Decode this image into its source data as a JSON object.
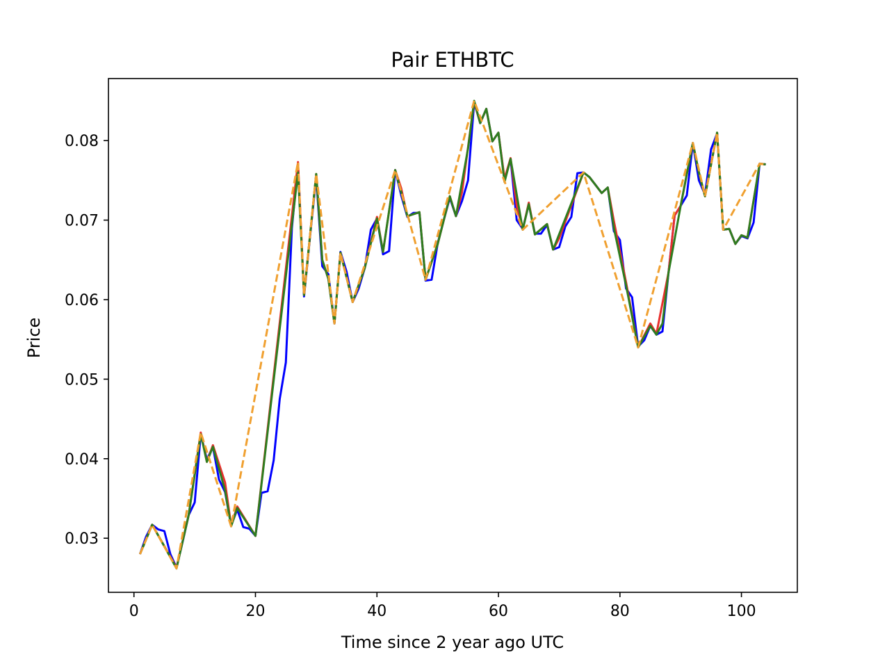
{
  "chart_data": {
    "type": "line",
    "title": "Pair ETHBTC",
    "xlabel": "Time since 2 year ago UTC",
    "ylabel": "Price",
    "xlim": [
      -4.2,
      109.2
    ],
    "ylim": [
      0.0232,
      0.0878
    ],
    "xticks": [
      0,
      20,
      40,
      60,
      80,
      100
    ],
    "yticks": [
      0.03,
      0.04,
      0.05,
      0.06,
      0.07,
      0.08
    ],
    "xtick_labels": [
      "0",
      "20",
      "40",
      "60",
      "80",
      "100"
    ],
    "ytick_labels": [
      "0.03",
      "0.04",
      "0.05",
      "0.06",
      "0.07",
      "0.08"
    ],
    "grid": false,
    "legend": "none",
    "series": [
      {
        "color": "#0000ff",
        "style": "solid",
        "points": [
          [
            1,
            0.028
          ],
          [
            2,
            0.0302
          ],
          [
            3,
            0.0317
          ],
          [
            4,
            0.0311
          ],
          [
            5,
            0.0309
          ],
          [
            6,
            0.028
          ],
          [
            7,
            0.0263
          ],
          [
            8,
            0.0295
          ],
          [
            9,
            0.0329
          ],
          [
            10,
            0.0345
          ],
          [
            11,
            0.0431
          ],
          [
            12,
            0.0399
          ],
          [
            13,
            0.0415
          ],
          [
            14,
            0.0374
          ],
          [
            15,
            0.0358
          ],
          [
            16,
            0.0316
          ],
          [
            17,
            0.0336
          ],
          [
            18,
            0.0314
          ],
          [
            19,
            0.0312
          ],
          [
            20,
            0.0303
          ],
          [
            21,
            0.0357
          ],
          [
            22,
            0.0359
          ],
          [
            23,
            0.0398
          ],
          [
            24,
            0.0475
          ],
          [
            25,
            0.0521
          ],
          [
            26,
            0.069
          ],
          [
            27,
            0.077
          ],
          [
            28,
            0.0604
          ],
          [
            29,
            0.068
          ],
          [
            30,
            0.0754
          ],
          [
            31,
            0.0642
          ],
          [
            32,
            0.0632
          ],
          [
            33,
            0.057
          ],
          [
            34,
            0.066
          ],
          [
            35,
            0.0635
          ],
          [
            36,
            0.0597
          ],
          [
            37,
            0.0614
          ],
          [
            38,
            0.064
          ],
          [
            39,
            0.0688
          ],
          [
            40,
            0.0702
          ],
          [
            41,
            0.0657
          ],
          [
            42,
            0.0661
          ],
          [
            43,
            0.0763
          ],
          [
            44,
            0.0731
          ],
          [
            45,
            0.0704
          ],
          [
            46,
            0.0709
          ],
          [
            47,
            0.0709
          ],
          [
            48,
            0.0624
          ],
          [
            49,
            0.0625
          ],
          [
            50,
            0.0671
          ],
          [
            51,
            0.07
          ],
          [
            52,
            0.0728
          ],
          [
            53,
            0.0705
          ],
          [
            54,
            0.0724
          ],
          [
            55,
            0.075
          ],
          [
            56,
            0.0848
          ],
          [
            57,
            0.0822
          ],
          [
            58,
            0.084
          ],
          [
            59,
            0.0799
          ],
          [
            60,
            0.081
          ],
          [
            61,
            0.075
          ],
          [
            62,
            0.0777
          ],
          [
            63,
            0.07
          ],
          [
            64,
            0.0689
          ],
          [
            65,
            0.072
          ],
          [
            66,
            0.0683
          ],
          [
            67,
            0.0683
          ],
          [
            68,
            0.0694
          ],
          [
            69,
            0.0663
          ],
          [
            70,
            0.0666
          ],
          [
            71,
            0.0692
          ],
          [
            72,
            0.0704
          ],
          [
            73,
            0.0759
          ],
          [
            74,
            0.076
          ],
          [
            75,
            0.0754
          ],
          [
            76,
            0.0744
          ],
          [
            77,
            0.0734
          ],
          [
            78,
            0.0741
          ],
          [
            79,
            0.0686
          ],
          [
            80,
            0.0675
          ],
          [
            81,
            0.0614
          ],
          [
            82,
            0.0603
          ],
          [
            83,
            0.0541
          ],
          [
            84,
            0.0549
          ],
          [
            85,
            0.0567
          ],
          [
            86,
            0.0556
          ],
          [
            87,
            0.056
          ],
          [
            88,
            0.0634
          ],
          [
            89,
            0.0706
          ],
          [
            90,
            0.0718
          ],
          [
            91,
            0.0731
          ],
          [
            92,
            0.0797
          ],
          [
            93,
            0.075
          ],
          [
            94,
            0.0732
          ],
          [
            95,
            0.0789
          ],
          [
            96,
            0.0809
          ],
          [
            97,
            0.0688
          ],
          [
            98,
            0.0689
          ],
          [
            99,
            0.067
          ],
          [
            100,
            0.068
          ],
          [
            101,
            0.0677
          ],
          [
            102,
            0.0697
          ],
          [
            103,
            0.0771
          ],
          [
            104,
            0.077
          ]
        ]
      },
      {
        "color": "#e8302e",
        "style": "solid",
        "points": [
          [
            1,
            0.028
          ],
          [
            3,
            0.0317
          ],
          [
            5,
            0.029
          ],
          [
            7,
            0.0263
          ],
          [
            9,
            0.0329
          ],
          [
            11,
            0.0433
          ],
          [
            12,
            0.0396
          ],
          [
            13,
            0.0417
          ],
          [
            15,
            0.037
          ],
          [
            16,
            0.0316
          ],
          [
            17,
            0.034
          ],
          [
            20,
            0.0303
          ],
          [
            27,
            0.0773
          ],
          [
            28,
            0.0606
          ],
          [
            30,
            0.0758
          ],
          [
            31,
            0.065
          ],
          [
            32,
            0.0626
          ],
          [
            33,
            0.057
          ],
          [
            34,
            0.0659
          ],
          [
            36,
            0.0597
          ],
          [
            38,
            0.064
          ],
          [
            40,
            0.0704
          ],
          [
            41,
            0.066
          ],
          [
            43,
            0.0763
          ],
          [
            44,
            0.074
          ],
          [
            45,
            0.0705
          ],
          [
            47,
            0.071
          ],
          [
            48,
            0.0625
          ],
          [
            50,
            0.067
          ],
          [
            52,
            0.073
          ],
          [
            53,
            0.0705
          ],
          [
            54,
            0.0735
          ],
          [
            56,
            0.0849
          ],
          [
            57,
            0.0822
          ],
          [
            58,
            0.084
          ],
          [
            59,
            0.0799
          ],
          [
            60,
            0.081
          ],
          [
            61,
            0.0752
          ],
          [
            62,
            0.0778
          ],
          [
            63,
            0.0718
          ],
          [
            64,
            0.0688
          ],
          [
            65,
            0.0722
          ],
          [
            66,
            0.0682
          ],
          [
            68,
            0.0695
          ],
          [
            69,
            0.0663
          ],
          [
            70,
            0.0677
          ],
          [
            74,
            0.076
          ],
          [
            75,
            0.0754
          ],
          [
            77,
            0.0734
          ],
          [
            78,
            0.0741
          ],
          [
            79,
            0.0699
          ],
          [
            81,
            0.0622
          ],
          [
            83,
            0.054
          ],
          [
            85,
            0.057
          ],
          [
            86,
            0.0557
          ],
          [
            88,
            0.0634
          ],
          [
            89,
            0.0706
          ],
          [
            90,
            0.0718
          ],
          [
            92,
            0.0797
          ],
          [
            93,
            0.076
          ],
          [
            94,
            0.073
          ],
          [
            96,
            0.081
          ],
          [
            97,
            0.0688
          ],
          [
            98,
            0.0689
          ],
          [
            99,
            0.067
          ],
          [
            100,
            0.0681
          ],
          [
            101,
            0.0678
          ],
          [
            103,
            0.0771
          ],
          [
            104,
            0.077
          ]
        ]
      },
      {
        "color": "#2e7d1f",
        "style": "solid",
        "points": [
          [
            1,
            0.028
          ],
          [
            3,
            0.0317
          ],
          [
            5,
            0.029
          ],
          [
            7,
            0.0262
          ],
          [
            9,
            0.0329
          ],
          [
            11,
            0.0431
          ],
          [
            12,
            0.0396
          ],
          [
            13,
            0.0415
          ],
          [
            15,
            0.036
          ],
          [
            16,
            0.0315
          ],
          [
            17,
            0.0338
          ],
          [
            20,
            0.0303
          ],
          [
            27,
            0.076
          ],
          [
            28,
            0.0606
          ],
          [
            30,
            0.0758
          ],
          [
            31,
            0.065
          ],
          [
            32,
            0.0626
          ],
          [
            33,
            0.057
          ],
          [
            34,
            0.0659
          ],
          [
            36,
            0.0597
          ],
          [
            38,
            0.064
          ],
          [
            40,
            0.0702
          ],
          [
            41,
            0.066
          ],
          [
            43,
            0.0763
          ],
          [
            44,
            0.0735
          ],
          [
            45,
            0.0705
          ],
          [
            47,
            0.071
          ],
          [
            48,
            0.0625
          ],
          [
            50,
            0.067
          ],
          [
            52,
            0.073
          ],
          [
            53,
            0.0705
          ],
          [
            55,
            0.079
          ],
          [
            56,
            0.085
          ],
          [
            57,
            0.0822
          ],
          [
            58,
            0.084
          ],
          [
            59,
            0.0799
          ],
          [
            60,
            0.081
          ],
          [
            61,
            0.0748
          ],
          [
            62,
            0.0777
          ],
          [
            64,
            0.0688
          ],
          [
            65,
            0.072
          ],
          [
            66,
            0.0682
          ],
          [
            68,
            0.0695
          ],
          [
            69,
            0.0663
          ],
          [
            74,
            0.076
          ],
          [
            75,
            0.0754
          ],
          [
            77,
            0.0734
          ],
          [
            78,
            0.0741
          ],
          [
            79,
            0.069
          ],
          [
            81,
            0.0618
          ],
          [
            83,
            0.054
          ],
          [
            85,
            0.0567
          ],
          [
            86,
            0.0556
          ],
          [
            87,
            0.057
          ],
          [
            88,
            0.0634
          ],
          [
            90,
            0.0718
          ],
          [
            92,
            0.0797
          ],
          [
            93,
            0.076
          ],
          [
            94,
            0.073
          ],
          [
            96,
            0.081
          ],
          [
            97,
            0.0688
          ],
          [
            98,
            0.0689
          ],
          [
            99,
            0.067
          ],
          [
            100,
            0.0681
          ],
          [
            101,
            0.0678
          ],
          [
            103,
            0.0771
          ],
          [
            104,
            0.077
          ]
        ]
      },
      {
        "color": "#f0a030",
        "style": "dashed",
        "points": [
          [
            1,
            0.028
          ],
          [
            3,
            0.0317
          ],
          [
            7,
            0.0262
          ],
          [
            11,
            0.0433
          ],
          [
            16,
            0.0315
          ],
          [
            27,
            0.0773
          ],
          [
            28,
            0.0606
          ],
          [
            30,
            0.0758
          ],
          [
            33,
            0.057
          ],
          [
            34,
            0.0659
          ],
          [
            36,
            0.0597
          ],
          [
            43,
            0.0763
          ],
          [
            48,
            0.0625
          ],
          [
            56,
            0.085
          ],
          [
            64,
            0.0688
          ],
          [
            74,
            0.076
          ],
          [
            83,
            0.054
          ],
          [
            92,
            0.0797
          ],
          [
            94,
            0.073
          ],
          [
            96,
            0.081
          ],
          [
            97,
            0.0688
          ],
          [
            103,
            0.0771
          ],
          [
            104,
            0.077
          ]
        ]
      }
    ]
  }
}
